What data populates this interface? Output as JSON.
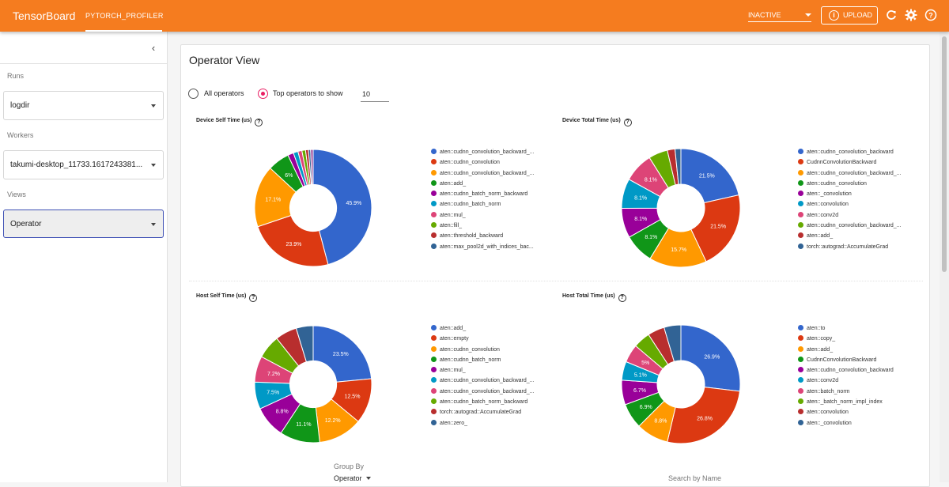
{
  "header": {
    "brand": "TensorBoard",
    "plugin_tab": "PYTORCH_PROFILER",
    "status_select": "INACTIVE",
    "upload_label": "UPLOAD",
    "icons": [
      "info-icon",
      "refresh-icon",
      "settings-icon",
      "help-icon"
    ]
  },
  "sidebar": {
    "collapse_icon": "chevron-left-icon",
    "runs_label": "Runs",
    "runs_value": "logdir",
    "workers_label": "Workers",
    "workers_value": "takumi-desktop_11733.1617243381...",
    "views_label": "Views",
    "views_value": "Operator"
  },
  "main": {
    "title": "Operator View",
    "radio_all": "All operators",
    "radio_top": "Top operators to show",
    "top_n_value": "10",
    "group_by_label": "Group By",
    "group_by_value": "Operator",
    "search_label": "Search by Name"
  },
  "colors": {
    "header": "#f57c1f",
    "accent_radio": "#e91e63",
    "active_border": "#3f51b5"
  },
  "chart_data": [
    {
      "type": "pie",
      "title": "Device Self Time (us)",
      "series": [
        {
          "name": "aten::cudnn_convolution_backward_...",
          "value": 45.9,
          "color": "#3366cc"
        },
        {
          "name": "aten::cudnn_convolution",
          "value": 23.9,
          "color": "#dc3912"
        },
        {
          "name": "aten::cudnn_convolution_backward_...",
          "value": 17.1,
          "color": "#ff9900"
        },
        {
          "name": "aten::add_",
          "value": 6.0,
          "color": "#109618"
        },
        {
          "name": "aten::cudnn_batch_norm_backward",
          "value": 1.6,
          "color": "#990099"
        },
        {
          "name": "aten::cudnn_batch_norm",
          "value": 1.3,
          "color": "#0099c6"
        },
        {
          "name": "aten::mul_",
          "value": 1.1,
          "color": "#dd4477"
        },
        {
          "name": "aten::fill_",
          "value": 1.0,
          "color": "#66aa00"
        },
        {
          "name": "aten::threshold_backward",
          "value": 0.8,
          "color": "#b82e2e"
        },
        {
          "name": "aten::max_pool2d_with_indices_bac...",
          "value": 0.6,
          "color": "#316395"
        },
        {
          "value": 0.7,
          "color": "#994499"
        }
      ],
      "labels": [
        "45.9%",
        "23.9%",
        "17.1%",
        "6%"
      ]
    },
    {
      "type": "pie",
      "title": "Device Total Time (us)",
      "series": [
        {
          "name": "aten::cudnn_convolution_backward",
          "value": 21.5,
          "color": "#3366cc"
        },
        {
          "name": "CudnnConvolutionBackward",
          "value": 21.5,
          "color": "#dc3912"
        },
        {
          "name": "aten::cudnn_convolution_backward_...",
          "value": 15.7,
          "color": "#ff9900"
        },
        {
          "name": "aten::cudnn_convolution",
          "value": 8.1,
          "color": "#109618"
        },
        {
          "name": "aten::_convolution",
          "value": 8.1,
          "color": "#990099"
        },
        {
          "name": "aten::convolution",
          "value": 8.1,
          "color": "#0099c6"
        },
        {
          "name": "aten::conv2d",
          "value": 8.1,
          "color": "#dd4477"
        },
        {
          "name": "aten::cudnn_convolution_backward_...",
          "value": 5.2,
          "color": "#66aa00"
        },
        {
          "name": "aten::add_",
          "value": 2.1,
          "color": "#b82e2e"
        },
        {
          "name": "torch::autograd::AccumulateGrad",
          "value": 1.6,
          "color": "#316395"
        }
      ],
      "labels": [
        "21.5%",
        "21.5%",
        "15.7%",
        "8.1%",
        "8.1%",
        "8.1%",
        "8.1%"
      ]
    },
    {
      "type": "pie",
      "title": "Host Self Time (us)",
      "series": [
        {
          "name": "aten::add_",
          "value": 23.5,
          "color": "#3366cc"
        },
        {
          "name": "aten::empty",
          "value": 12.5,
          "color": "#dc3912"
        },
        {
          "name": "aten::cudnn_convolution",
          "value": 12.2,
          "color": "#ff9900"
        },
        {
          "name": "aten::cudnn_batch_norm",
          "value": 11.1,
          "color": "#109618"
        },
        {
          "name": "aten::mul_",
          "value": 8.8,
          "color": "#990099"
        },
        {
          "name": "aten::cudnn_convolution_backward_...",
          "value": 7.5,
          "color": "#0099c6"
        },
        {
          "name": "aten::cudnn_convolution_backward_...",
          "value": 7.2,
          "color": "#dd4477"
        },
        {
          "name": "aten::cudnn_batch_norm_backward",
          "value": 6.5,
          "color": "#66aa00"
        },
        {
          "name": "torch::autograd::AccumulateGrad",
          "value": 6.0,
          "color": "#b82e2e"
        },
        {
          "name": "aten::zero_",
          "value": 4.7,
          "color": "#316395"
        }
      ],
      "labels": [
        "23.5%",
        "12.5%",
        "12.2%",
        "11.1%",
        "8.8%",
        "7.5%",
        "7.2%"
      ]
    },
    {
      "type": "pie",
      "title": "Host Total Time (us)",
      "series": [
        {
          "name": "aten::to",
          "value": 26.9,
          "color": "#3366cc"
        },
        {
          "name": "aten::copy_",
          "value": 26.8,
          "color": "#dc3912"
        },
        {
          "name": "aten::add_",
          "value": 8.8,
          "color": "#ff9900"
        },
        {
          "name": "CudnnConvolutionBackward",
          "value": 6.9,
          "color": "#109618"
        },
        {
          "name": "aten::cudnn_convolution_backward",
          "value": 6.7,
          "color": "#990099"
        },
        {
          "name": "aten::conv2d",
          "value": 5.1,
          "color": "#0099c6"
        },
        {
          "name": "aten::batch_norm",
          "value": 5.0,
          "color": "#dd4477"
        },
        {
          "name": "aten::_batch_norm_impl_index",
          "value": 4.6,
          "color": "#66aa00"
        },
        {
          "name": "aten::convolution",
          "value": 4.6,
          "color": "#b82e2e"
        },
        {
          "name": "aten::_convolution",
          "value": 4.6,
          "color": "#316395"
        }
      ],
      "labels": [
        "26.9%",
        "26.8%",
        "8.8%",
        "6.9%",
        "6.7%",
        "5.1%",
        "5%"
      ]
    }
  ]
}
